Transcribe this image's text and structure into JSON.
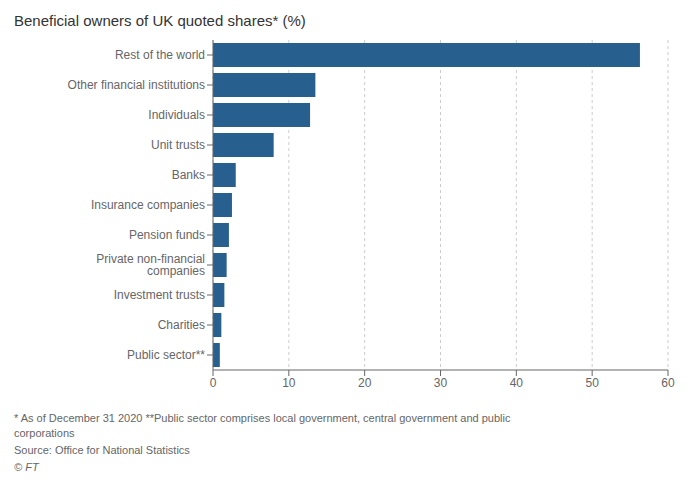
{
  "chart_data": {
    "type": "bar",
    "orientation": "horizontal",
    "title": "Beneficial owners of UK quoted shares* (%)",
    "categories": [
      "Rest of the world",
      "Other financial institutions",
      "Individuals",
      "Unit trusts",
      "Banks",
      "Insurance companies",
      "Pension funds",
      "Private non-financial companies",
      "Investment trusts",
      "Charities",
      "Public sector**"
    ],
    "values": [
      56.3,
      13.5,
      12.8,
      8.0,
      3.0,
      2.5,
      2.1,
      1.8,
      1.5,
      1.1,
      0.9
    ],
    "color": "#27608e",
    "xlim": [
      0,
      60
    ],
    "xticks": [
      0,
      10,
      20,
      30,
      40,
      50,
      60
    ],
    "grid": true,
    "annotations": [
      "* As of December 31 2020 **Public sector comprises local government, central government and public\ncorporations",
      "Source: Office for National Statistics",
      "© FT"
    ]
  }
}
